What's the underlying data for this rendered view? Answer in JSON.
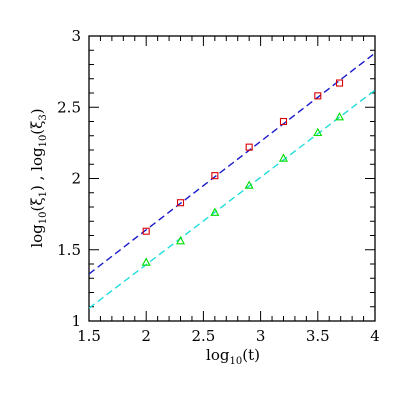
{
  "chart_data": {
    "type": "scatter",
    "xlim": [
      1.5,
      4
    ],
    "ylim": [
      1,
      3
    ],
    "x_ticks": [
      "1.5",
      "2",
      "2.5",
      "3",
      "3.5",
      "4"
    ],
    "y_ticks": [
      "1",
      "1.5",
      "2",
      "2.5",
      "3"
    ],
    "xlabel": {
      "prefix": "log",
      "sub": "10",
      "suffix": "(t)"
    },
    "ylabel": {
      "p1": "log",
      "s1": "10",
      "m1": "(ξ",
      "s2": "1",
      "m2": ")  ,  log",
      "s3": "10",
      "m3": "(ξ",
      "s4": "3",
      "m4": ")"
    },
    "grid": false,
    "series": [
      {
        "marker": "square",
        "color": "#dd0000",
        "x": [
          2.0,
          2.3,
          2.6,
          2.9,
          3.2,
          3.5,
          3.69
        ],
        "y": [
          1.63,
          1.83,
          2.02,
          2.22,
          2.4,
          2.58,
          2.67
        ]
      },
      {
        "marker": "triangle",
        "color": "#00dd00",
        "x": [
          2.0,
          2.3,
          2.6,
          2.9,
          3.2,
          3.5,
          3.69
        ],
        "y": [
          1.41,
          1.56,
          1.76,
          1.95,
          2.14,
          2.32,
          2.43
        ]
      }
    ],
    "fit_lines": [
      {
        "color": "#1a1acc",
        "style": "dashed",
        "x": [
          1.5,
          4.0
        ],
        "y": [
          1.33,
          2.88
        ]
      },
      {
        "color": "#22dddd",
        "style": "dashed",
        "x": [
          1.5,
          4.0
        ],
        "y": [
          1.09,
          2.62
        ]
      }
    ]
  }
}
